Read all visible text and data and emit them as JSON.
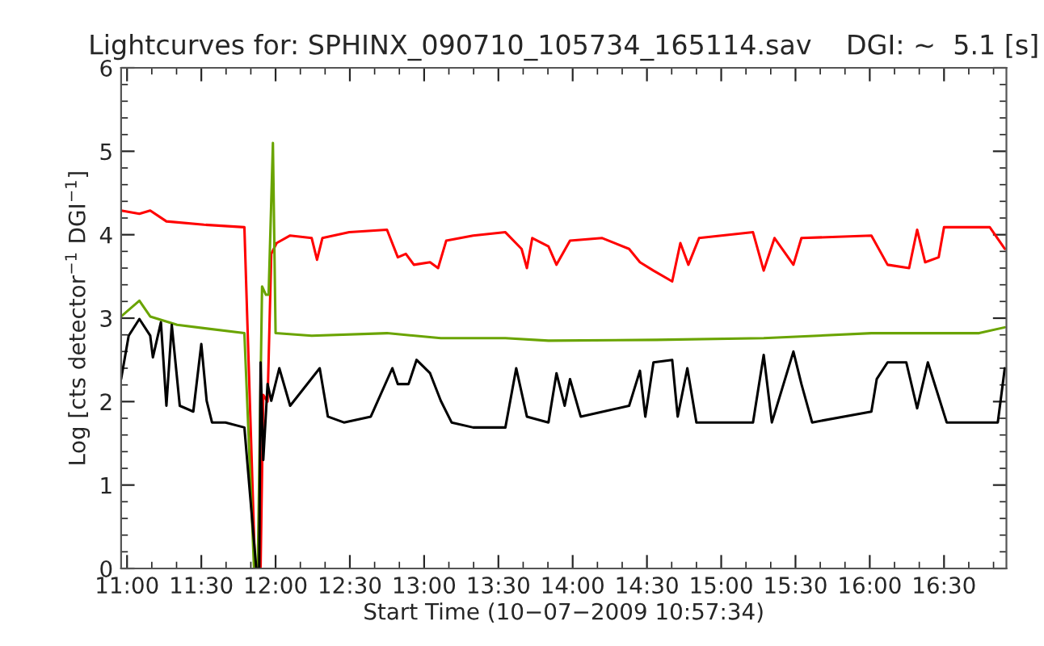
{
  "chart_data": {
    "type": "line",
    "title": "Lightcurves for: SPHINX_090710_105734_165114.sav    DGI: ~  5.1 [s]",
    "xlabel": "Start Time (10−07−2009 10:57:34)",
    "ylabel": "Log [cts detector$^{−1}$ DGI$^{−1}$]",
    "xlim": [
      10.96,
      16.92
    ],
    "xticks": [
      {
        "value": 11,
        "label": "11:00"
      },
      {
        "value": 11.5,
        "label": "11:30"
      },
      {
        "value": 12,
        "label": "12:00"
      },
      {
        "value": 12.5,
        "label": "12:30"
      },
      {
        "value": 13,
        "label": "13:00"
      },
      {
        "value": 13.5,
        "label": "13:30"
      },
      {
        "value": 14,
        "label": "14:00"
      },
      {
        "value": 14.5,
        "label": "14:30"
      },
      {
        "value": 15,
        "label": "15:00"
      },
      {
        "value": 15.5,
        "label": "15:30"
      },
      {
        "value": 16,
        "label": "16:00"
      },
      {
        "value": 16.5,
        "label": "16:30"
      }
    ],
    "ylim": [
      0,
      6
    ],
    "yticks": [
      0,
      1,
      2,
      3,
      4,
      5,
      6
    ],
    "grid": false,
    "series": [
      {
        "color": "#ff0000",
        "x": [
          10.96,
          11.083,
          11.156,
          11.265,
          11.518,
          11.79,
          11.862,
          11.899,
          11.917,
          11.946,
          11.96,
          11.971,
          12.007,
          12.098,
          12.243,
          12.279,
          12.315,
          12.496,
          12.75,
          12.823,
          12.877,
          12.931,
          13.04,
          13.094,
          13.149,
          13.33,
          13.547,
          13.656,
          13.692,
          13.728,
          13.837,
          13.891,
          13.982,
          14.199,
          14.38,
          14.453,
          14.544,
          14.67,
          14.725,
          14.779,
          14.851,
          15.214,
          15.286,
          15.359,
          15.486,
          15.54,
          16.011,
          16.12,
          16.265,
          16.319,
          16.373,
          16.464,
          16.5,
          16.808,
          16.909
        ],
        "values": [
          4.29,
          4.25,
          4.29,
          4.16,
          4.12,
          4.09,
          0,
          0,
          2.08,
          2.0,
          2.99,
          3.77,
          3.9,
          3.99,
          3.96,
          3.7,
          3.96,
          4.03,
          4.06,
          3.73,
          3.77,
          3.64,
          3.67,
          3.6,
          3.93,
          3.99,
          4.03,
          3.83,
          3.6,
          3.96,
          3.86,
          3.64,
          3.93,
          3.96,
          3.83,
          3.67,
          3.57,
          3.44,
          3.9,
          3.64,
          3.96,
          4.03,
          3.57,
          3.96,
          3.64,
          3.96,
          3.99,
          3.64,
          3.6,
          4.06,
          3.67,
          3.73,
          4.09,
          4.09,
          3.83
        ]
      },
      {
        "color": "#6aa400",
        "x": [
          10.96,
          11.083,
          11.156,
          11.337,
          11.79,
          11.855,
          11.88,
          11.909,
          11.935,
          11.953,
          11.982,
          12.0,
          12.243,
          12.75,
          13.112,
          13.547,
          13.837,
          14.562,
          15.286,
          16.011,
          16.736,
          16.909
        ],
        "values": [
          3.02,
          3.21,
          3.02,
          2.92,
          2.82,
          0,
          0,
          3.38,
          3.28,
          3.28,
          5.1,
          2.82,
          2.79,
          2.82,
          2.76,
          2.76,
          2.73,
          2.74,
          2.76,
          2.82,
          2.82,
          2.89
        ]
      },
      {
        "color": "#000000",
        "x": [
          10.96,
          11.011,
          11.083,
          11.156,
          11.174,
          11.228,
          11.265,
          11.301,
          11.355,
          11.446,
          11.5,
          11.536,
          11.572,
          11.663,
          11.79,
          11.87,
          11.89,
          11.899,
          11.917,
          11.946,
          11.971,
          12.025,
          12.098,
          12.297,
          12.352,
          12.46,
          12.641,
          12.786,
          12.823,
          12.895,
          12.949,
          13.04,
          13.112,
          13.185,
          13.33,
          13.547,
          13.62,
          13.692,
          13.837,
          13.891,
          13.946,
          13.982,
          14.054,
          14.38,
          14.453,
          14.489,
          14.544,
          14.67,
          14.707,
          14.772,
          14.833,
          15.214,
          15.286,
          15.341,
          15.486,
          15.54,
          15.612,
          16.011,
          16.047,
          16.12,
          16.246,
          16.319,
          16.391,
          16.518,
          16.862,
          16.909
        ],
        "values": [
          2.27,
          2.79,
          2.99,
          2.79,
          2.53,
          2.95,
          1.95,
          2.92,
          1.95,
          1.88,
          2.69,
          2.01,
          1.75,
          1.75,
          1.69,
          0,
          0,
          2.47,
          1.3,
          2.21,
          2.01,
          2.4,
          1.95,
          2.4,
          1.82,
          1.75,
          1.82,
          2.4,
          2.21,
          2.21,
          2.5,
          2.34,
          2.01,
          1.75,
          1.69,
          1.69,
          2.4,
          1.82,
          1.75,
          2.34,
          1.95,
          2.27,
          1.82,
          1.95,
          2.37,
          1.82,
          2.47,
          2.5,
          1.82,
          2.4,
          1.75,
          1.75,
          2.56,
          1.75,
          2.6,
          2.21,
          1.75,
          1.88,
          2.27,
          2.47,
          2.47,
          1.92,
          2.47,
          1.75,
          1.75,
          2.4
        ]
      }
    ]
  }
}
